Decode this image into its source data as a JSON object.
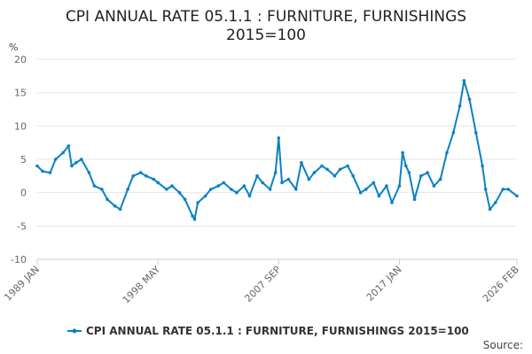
{
  "chart_data": {
    "type": "line",
    "title_line1": "CPI ANNUAL RATE 05.1.1 : FURNITURE, FURNISHINGS",
    "title_line2": "2015=100",
    "ylabel": "%",
    "ylim": [
      -10,
      20
    ],
    "yticks": [
      -10,
      -5,
      0,
      5,
      10,
      15,
      20
    ],
    "xlim": [
      "1989 JAN",
      "2026 FEB"
    ],
    "xticks": [
      "1989 JAN",
      "1998 MAY",
      "2007 SEP",
      "2017 JAN",
      "2026 FEB"
    ],
    "grid": true,
    "legend_position": "bottom",
    "series": [
      {
        "name": "CPI ANNUAL RATE 05.1.1 : FURNITURE, FURNISHINGS 2015=100",
        "color": "#0a81c4",
        "points": [
          [
            "1989-01",
            4.0
          ],
          [
            "1989-06",
            3.2
          ],
          [
            "1990-01",
            3.0
          ],
          [
            "1990-06",
            5.0
          ],
          [
            "1991-01",
            6.0
          ],
          [
            "1991-06",
            7.0
          ],
          [
            "1991-09",
            4.0
          ],
          [
            "1992-01",
            4.5
          ],
          [
            "1992-06",
            5.0
          ],
          [
            "1993-01",
            3.0
          ],
          [
            "1993-06",
            1.0
          ],
          [
            "1994-01",
            0.5
          ],
          [
            "1994-06",
            -1.0
          ],
          [
            "1995-01",
            -2.0
          ],
          [
            "1995-06",
            -2.5
          ],
          [
            "1996-01",
            0.5
          ],
          [
            "1996-06",
            2.5
          ],
          [
            "1997-01",
            3.0
          ],
          [
            "1997-06",
            2.5
          ],
          [
            "1998-01",
            2.0
          ],
          [
            "1998-05",
            1.5
          ],
          [
            "1999-01",
            0.5
          ],
          [
            "1999-06",
            1.0
          ],
          [
            "2000-01",
            0.0
          ],
          [
            "2000-06",
            -1.0
          ],
          [
            "2001-01",
            -3.5
          ],
          [
            "2001-03",
            -4.0
          ],
          [
            "2001-06",
            -1.5
          ],
          [
            "2002-01",
            -0.5
          ],
          [
            "2002-06",
            0.5
          ],
          [
            "2003-01",
            1.0
          ],
          [
            "2003-06",
            1.5
          ],
          [
            "2004-01",
            0.5
          ],
          [
            "2004-06",
            0.0
          ],
          [
            "2005-01",
            1.0
          ],
          [
            "2005-06",
            -0.5
          ],
          [
            "2006-01",
            2.5
          ],
          [
            "2006-06",
            1.5
          ],
          [
            "2007-01",
            0.5
          ],
          [
            "2007-06",
            3.0
          ],
          [
            "2007-09",
            8.2
          ],
          [
            "2007-12",
            1.5
          ],
          [
            "2008-06",
            2.0
          ],
          [
            "2009-01",
            0.5
          ],
          [
            "2009-06",
            4.5
          ],
          [
            "2010-01",
            2.0
          ],
          [
            "2010-06",
            3.0
          ],
          [
            "2011-01",
            4.0
          ],
          [
            "2011-06",
            3.5
          ],
          [
            "2012-01",
            2.5
          ],
          [
            "2012-06",
            3.5
          ],
          [
            "2013-01",
            4.0
          ],
          [
            "2013-06",
            2.5
          ],
          [
            "2014-01",
            0.0
          ],
          [
            "2014-06",
            0.5
          ],
          [
            "2015-01",
            1.5
          ],
          [
            "2015-06",
            -0.5
          ],
          [
            "2016-01",
            1.0
          ],
          [
            "2016-06",
            -1.5
          ],
          [
            "2017-01",
            1.0
          ],
          [
            "2017-04",
            6.0
          ],
          [
            "2017-07",
            4.0
          ],
          [
            "2017-10",
            3.0
          ],
          [
            "2018-03",
            -1.0
          ],
          [
            "2018-09",
            2.5
          ],
          [
            "2019-03",
            3.0
          ],
          [
            "2019-09",
            1.0
          ],
          [
            "2020-03",
            2.0
          ],
          [
            "2020-09",
            6.0
          ],
          [
            "2021-03",
            9.0
          ],
          [
            "2021-09",
            13.0
          ],
          [
            "2022-01",
            16.8
          ],
          [
            "2022-06",
            14.0
          ],
          [
            "2022-12",
            9.0
          ],
          [
            "2023-06",
            4.0
          ],
          [
            "2023-09",
            0.5
          ],
          [
            "2024-01",
            -2.5
          ],
          [
            "2024-06",
            -1.5
          ],
          [
            "2025-01",
            0.5
          ],
          [
            "2025-06",
            0.5
          ],
          [
            "2026-02",
            -0.5
          ]
        ]
      }
    ],
    "source": "Source:"
  }
}
